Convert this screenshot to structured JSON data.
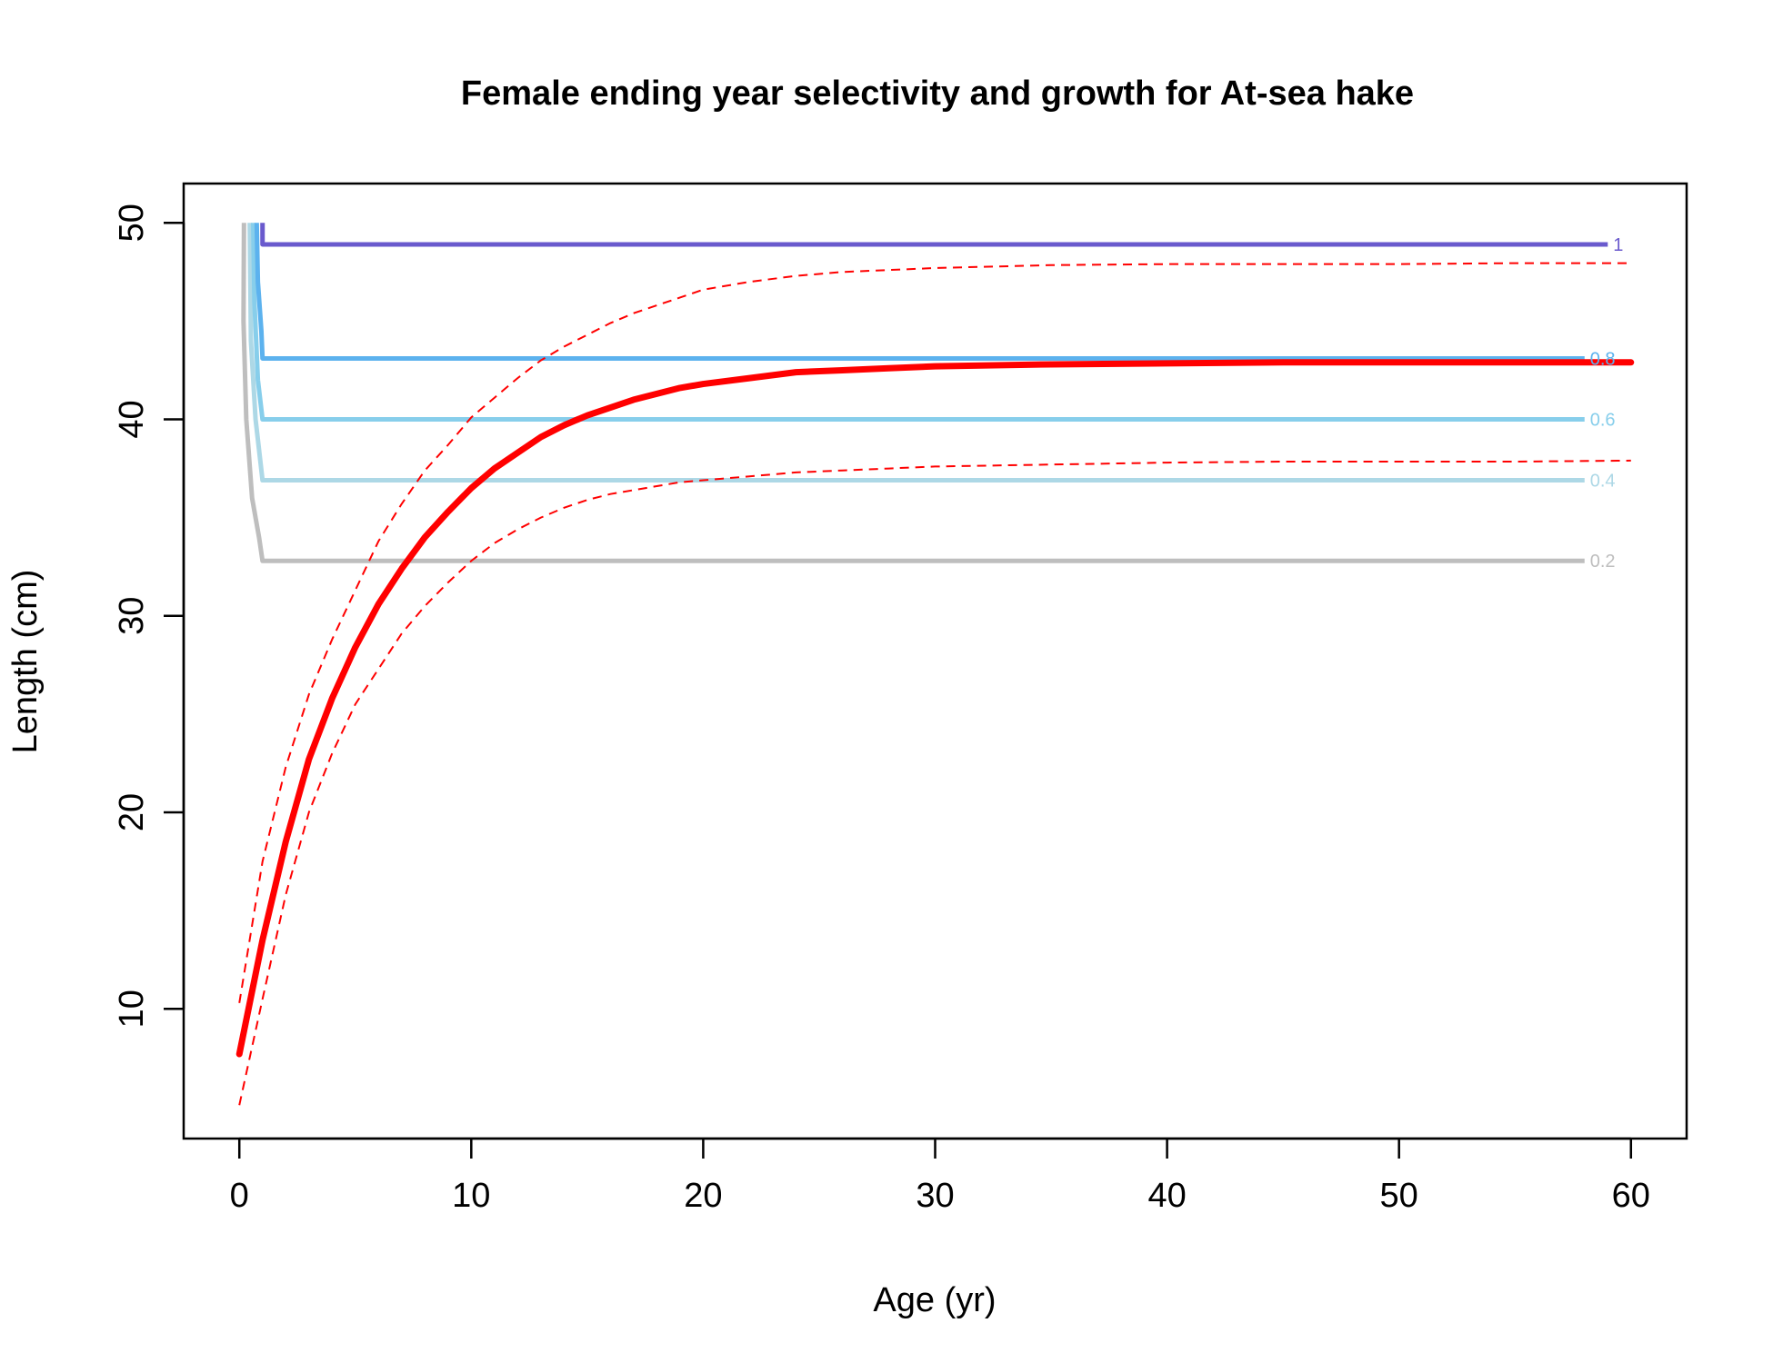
{
  "chart_data": {
    "type": "line",
    "title": "Female ending year selectivity and growth for At-sea hake",
    "xlabel": "Age (yr)",
    "ylabel": "Length (cm)",
    "xlim": [
      -2.4,
      62.4
    ],
    "ylim": [
      3.4,
      52.0
    ],
    "x_ticks": [
      0,
      10,
      20,
      30,
      40,
      50,
      60
    ],
    "y_ticks": [
      10,
      20,
      30,
      40,
      50
    ],
    "grid": false,
    "selectivity_contours": [
      {
        "label": "0.2",
        "color": "#bebebe",
        "length": 32.8,
        "x_end": 58.0,
        "curve": [
          [
            0.2,
            50
          ],
          [
            0.18,
            45
          ],
          [
            0.3,
            40
          ],
          [
            0.55,
            36
          ],
          [
            0.85,
            34
          ],
          [
            1.0,
            32.8
          ]
        ]
      },
      {
        "label": "0.4",
        "color": "#add8e6",
        "length": 36.9,
        "x_end": 58.0,
        "curve": [
          [
            0.45,
            50
          ],
          [
            0.5,
            44
          ],
          [
            0.7,
            40
          ],
          [
            1.0,
            36.9
          ]
        ]
      },
      {
        "label": "0.6",
        "color": "#87ceeb",
        "length": 40.0,
        "x_end": 58.0,
        "curve": [
          [
            0.6,
            50
          ],
          [
            0.65,
            46
          ],
          [
            0.8,
            42
          ],
          [
            1.0,
            40.0
          ]
        ]
      },
      {
        "label": "0.8",
        "color": "#5cb2ee",
        "length": 43.1,
        "x_end": 58.0,
        "curve": [
          [
            0.75,
            50
          ],
          [
            0.8,
            47
          ],
          [
            0.95,
            44.5
          ],
          [
            1.0,
            43.1
          ]
        ]
      },
      {
        "label": "1",
        "color": "#6a5acd",
        "length": 48.9,
        "x_end": 59.0,
        "curve": [
          [
            1.0,
            50
          ],
          [
            1.0,
            48.9
          ]
        ]
      }
    ],
    "growth": {
      "ages": [
        0,
        1,
        2,
        3,
        4,
        5,
        6,
        7,
        8,
        9,
        10,
        11,
        12,
        13,
        14,
        15,
        16,
        17,
        18,
        19,
        20,
        22,
        24,
        26,
        28,
        30,
        35,
        40,
        45,
        50,
        55,
        60
      ],
      "mean": [
        7.7,
        13.5,
        18.5,
        22.7,
        25.8,
        28.4,
        30.6,
        32.4,
        34.0,
        35.3,
        36.5,
        37.5,
        38.3,
        39.1,
        39.7,
        40.2,
        40.6,
        41.0,
        41.3,
        41.6,
        41.8,
        42.1,
        42.4,
        42.5,
        42.6,
        42.7,
        42.8,
        42.85,
        42.9,
        42.9,
        42.9,
        42.9
      ],
      "upper": [
        10.3,
        17.5,
        22.3,
        26.0,
        28.8,
        31.3,
        33.8,
        35.7,
        37.4,
        38.7,
        40.1,
        41.1,
        42.1,
        43.0,
        43.7,
        44.3,
        44.9,
        45.4,
        45.8,
        46.2,
        46.6,
        47.0,
        47.3,
        47.5,
        47.6,
        47.7,
        47.85,
        47.9,
        47.9,
        47.9,
        47.95,
        47.95
      ],
      "lower": [
        5.1,
        10.5,
        15.8,
        20.0,
        23.0,
        25.5,
        27.3,
        29.1,
        30.5,
        31.7,
        32.8,
        33.7,
        34.4,
        35.0,
        35.5,
        35.9,
        36.2,
        36.4,
        36.6,
        36.8,
        36.9,
        37.1,
        37.3,
        37.4,
        37.5,
        37.6,
        37.7,
        37.8,
        37.85,
        37.85,
        37.85,
        37.9
      ],
      "mean_color": "#ff0000",
      "ci_color": "#ff0000"
    }
  }
}
